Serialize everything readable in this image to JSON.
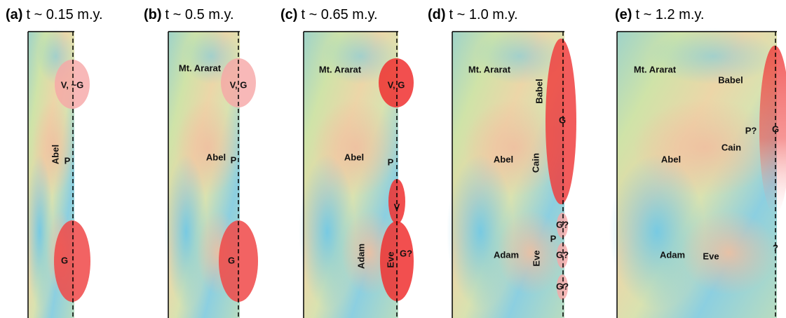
{
  "panels": [
    {
      "tag": "(a)",
      "time": "t ~ 0.15 m.y.",
      "labels": [
        "V, ~G",
        "Abel",
        "P",
        "G"
      ]
    },
    {
      "tag": "(b)",
      "time": "t ~ 0.5 m.y.",
      "labels": [
        "Mt. Ararat",
        "V, G",
        "Abel",
        "P",
        "G"
      ]
    },
    {
      "tag": "(c)",
      "time": "t ~ 0.65 m.y.",
      "labels": [
        "Mt. Ararat",
        "V, G",
        "Abel",
        "P",
        "V",
        "Adam",
        "Eve",
        "G?"
      ]
    },
    {
      "tag": "(d)",
      "time": "t ~ 1.0 m.y.",
      "labels": [
        "Mt. Ararat",
        "Babel",
        "G",
        "Abel",
        "Cain",
        "G?",
        "P",
        "Adam",
        "Eve",
        "G?",
        "G?"
      ]
    },
    {
      "tag": "(e)",
      "time": "t ~ 1.2 m.y.",
      "labels": [
        "Mt. Ararat",
        "Babel",
        "P?",
        "G",
        "Cain",
        "Abel",
        "Adam",
        "Eve",
        "?"
      ]
    }
  ]
}
